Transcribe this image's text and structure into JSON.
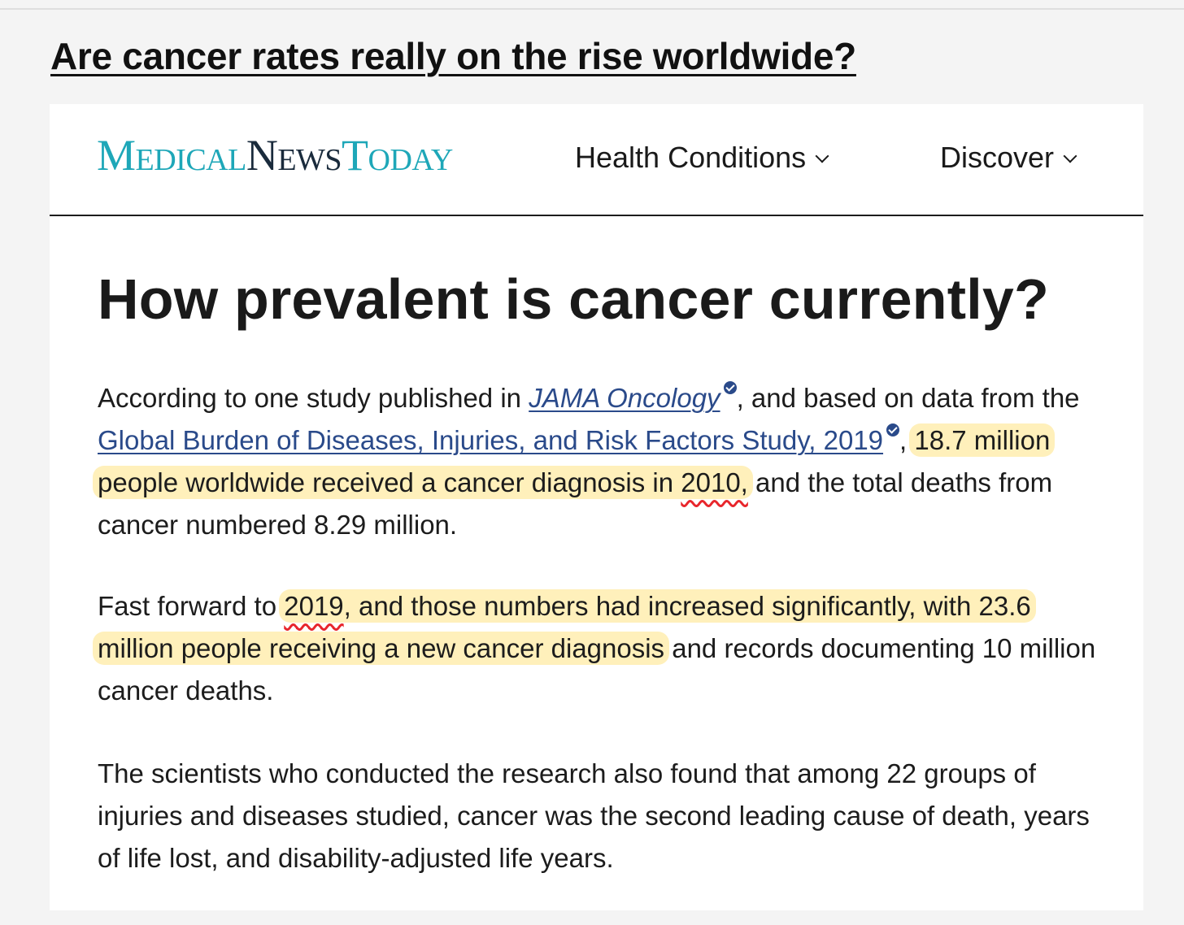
{
  "post": {
    "title": "Are cancer rates really on the rise worldwide?"
  },
  "site": {
    "logo": {
      "part1": "Medical",
      "part2": "News",
      "part3": "Today"
    },
    "nav": {
      "health_conditions": "Health Conditions",
      "discover": "Discover"
    },
    "colors": {
      "brand_teal": "#1ea7b8",
      "brand_dark": "#1a2b3c",
      "link": "#2a4a8a",
      "highlight": "#ffe278",
      "pen_red": "#e8262c"
    }
  },
  "article": {
    "heading": "How prevalent is cancer currently?",
    "p1": {
      "t1": "According to one study published in ",
      "link1": "JAMA Oncology",
      "t2": ", and based on data from the ",
      "link2": "Global Burden of Diseases, Injuries, and Risk Factors Study, 2019",
      "t3": ", ",
      "hl1": "18.7 million people worldwide received a cancer diagnosis in ",
      "hl1_mark": "2010,",
      "t4": " and the total deaths from cancer numbered 8.29 million."
    },
    "p2": {
      "t1": "Fast forward to ",
      "hl_mark": "2019",
      "hl_rest": ", and those numbers had increased significantly, with 23.6 million people receiving a new cancer diagnosis",
      "t2": " and records documenting 10 million cancer deaths."
    },
    "p3": {
      "text": "The scientists who conducted the research also found that among 22 groups of injuries and diseases studied, cancer was the second leading cause of death, years of life lost, and disability-adjusted life years."
    }
  },
  "icons": {
    "verified": "verified-check-icon",
    "chevron": "chevron-down-icon"
  }
}
